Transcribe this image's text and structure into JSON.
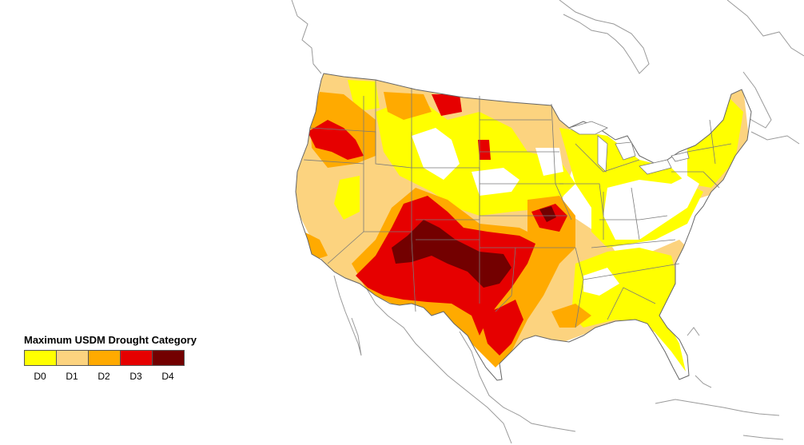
{
  "map": {
    "colors": {
      "D0": "#ffff00",
      "D1": "#fcd37f",
      "D2": "#ffaa00",
      "D3": "#e60000",
      "D4": "#730000",
      "outline": "#666666",
      "coast": "#9a9a9a"
    }
  },
  "legend": {
    "title": "Maximum USDM Drought Category",
    "items": [
      {
        "label": "D0",
        "color": "#ffff00"
      },
      {
        "label": "D1",
        "color": "#fcd37f"
      },
      {
        "label": "D2",
        "color": "#ffaa00"
      },
      {
        "label": "D3",
        "color": "#e60000"
      },
      {
        "label": "D4",
        "color": "#730000"
      }
    ]
  }
}
